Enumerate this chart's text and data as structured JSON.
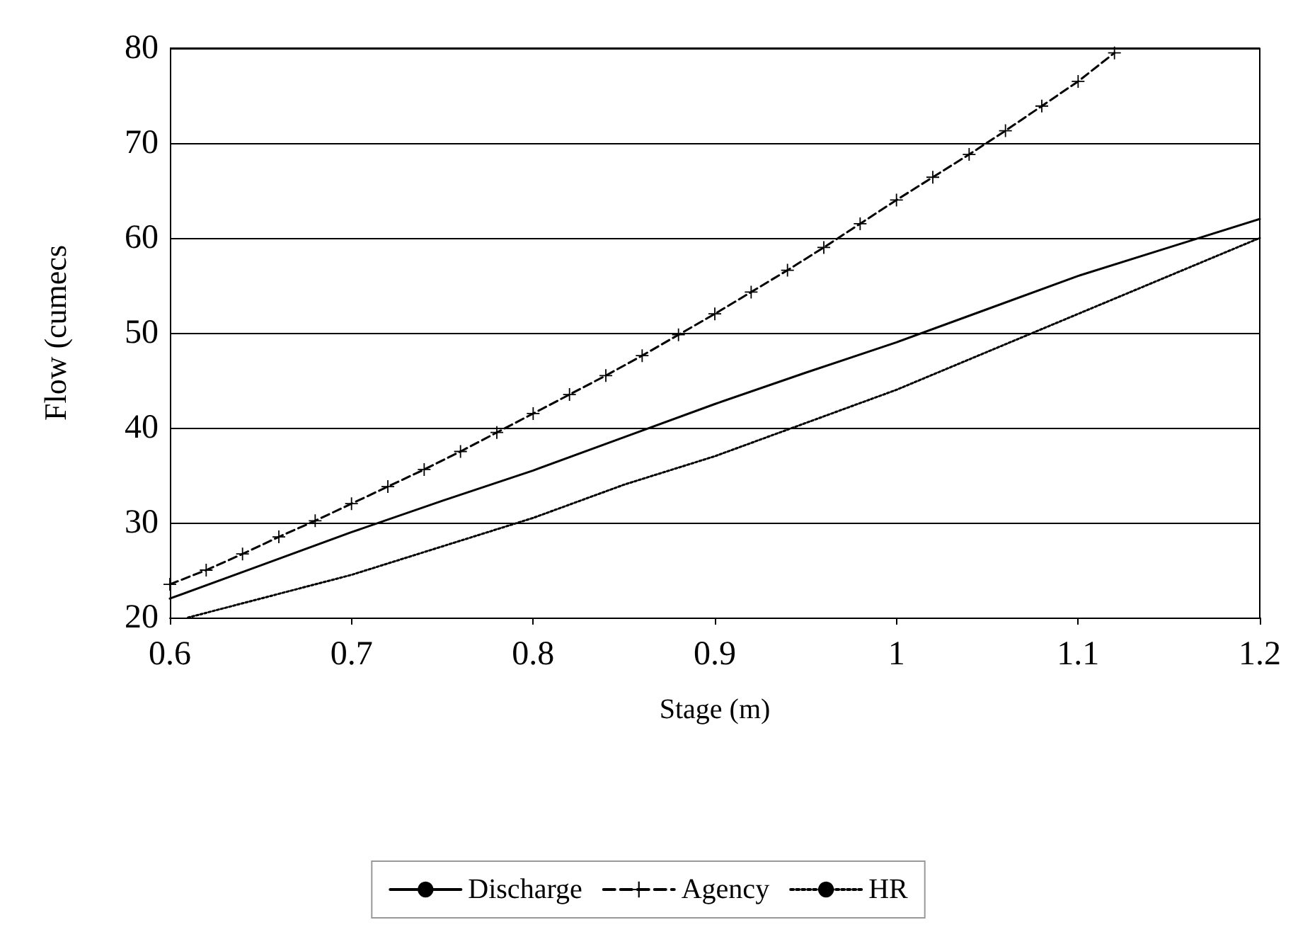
{
  "chart_data": {
    "type": "line",
    "xlabel": "Stage (m)",
    "ylabel": "Flow (cumecs",
    "xlim": [
      0.6,
      1.2
    ],
    "xticks": [
      0.6,
      0.7,
      0.8,
      0.9,
      1,
      1.1,
      1.2
    ],
    "ylim": [
      20,
      80
    ],
    "yticks": [
      20,
      30,
      40,
      50,
      60,
      70,
      80
    ],
    "grid": "y",
    "legend": "bottom",
    "series": [
      {
        "name": "Discharge",
        "color": "#000000",
        "line_style": "solid",
        "marker": "none",
        "x": [
          0.6,
          0.65,
          0.7,
          0.75,
          0.8,
          0.85,
          0.9,
          0.95,
          1.0,
          1.05,
          1.1,
          1.15,
          1.2
        ],
        "values": [
          22,
          25.5,
          29,
          32.3,
          35.5,
          39,
          42.5,
          45.8,
          49,
          52.5,
          56,
          59,
          62
        ]
      },
      {
        "name": "Agency",
        "color": "#000000",
        "line_style": "dashed",
        "marker": "cross",
        "x": [
          0.6,
          0.62,
          0.64,
          0.66,
          0.68,
          0.7,
          0.72,
          0.74,
          0.76,
          0.78,
          0.8,
          0.82,
          0.84,
          0.86,
          0.88,
          0.9,
          0.92,
          0.94,
          0.96,
          0.98,
          1.0,
          1.02,
          1.04,
          1.06,
          1.08,
          1.1,
          1.12
        ],
        "values": [
          23.5,
          25,
          26.7,
          28.5,
          30.2,
          32,
          33.8,
          35.6,
          37.5,
          39.5,
          41.5,
          43.5,
          45.5,
          47.6,
          49.8,
          52,
          54.3,
          56.6,
          59,
          61.5,
          64,
          66.4,
          68.8,
          71.3,
          73.9,
          76.5,
          79.5
        ]
      },
      {
        "name": "HR",
        "color": "#000000",
        "line_style": "dotted",
        "marker": "none",
        "x": [
          0.61,
          0.65,
          0.7,
          0.75,
          0.8,
          0.85,
          0.9,
          0.95,
          1.0,
          1.05,
          1.1,
          1.15,
          1.2
        ],
        "values": [
          20,
          22,
          24.5,
          27.5,
          30.5,
          34,
          37,
          40.5,
          44,
          48,
          52,
          56,
          60
        ]
      }
    ]
  }
}
